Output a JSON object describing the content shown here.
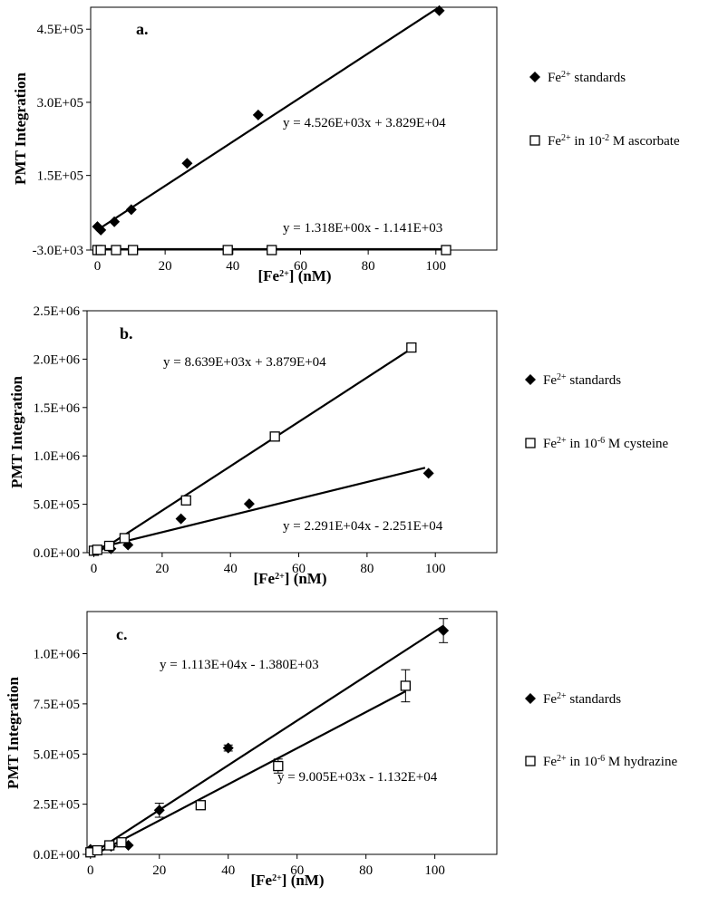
{
  "figure": {
    "x_axis_label": {
      "pre": "[Fe",
      "sup": "2+",
      "post": "] (nM)"
    },
    "y_axis_label": "PMT Integration"
  },
  "chart_data": [
    {
      "type": "scatter",
      "panel_label": "a.",
      "xlim": [
        -2,
        118
      ],
      "ylim": [
        -3000,
        495000
      ],
      "xticks": [
        0,
        20,
        40,
        60,
        80,
        100
      ],
      "yticks": [
        -3000,
        150000,
        300000,
        450000
      ],
      "ytick_labels": [
        "-3.0E+03",
        "1.5E+05",
        "3.0E+05",
        "4.5E+05"
      ],
      "series": [
        {
          "name": "standards",
          "legend": {
            "pre": "Fe",
            "sup": "2+",
            "post": " standards"
          },
          "marker": "diamond",
          "points": [
            [
              0,
              45000
            ],
            [
              1,
              38000
            ],
            [
              5,
              55000
            ],
            [
              10,
              80000
            ],
            [
              26.5,
              175000
            ],
            [
              47.5,
              274000
            ],
            [
              101,
              488000
            ]
          ],
          "fit": {
            "slope": 4526,
            "intercept": 38290,
            "x_range": [
              0,
              101
            ],
            "equation": "y = 4.526E+03x + 3.829E+04"
          }
        },
        {
          "name": "ascorbate",
          "legend": {
            "pre": "Fe",
            "sup": "2+",
            "mid": " in 10",
            "sup2": "-2",
            "post": " M ascorbate"
          },
          "marker": "square",
          "points": [
            [
              0,
              -3000
            ],
            [
              1,
              -3000
            ],
            [
              5.5,
              -3000
            ],
            [
              10.5,
              -3000
            ],
            [
              38.5,
              -3000
            ],
            [
              51.5,
              -3000
            ],
            [
              103,
              -3000
            ]
          ],
          "fit": {
            "slope": 1.318,
            "intercept": -1141,
            "x_range": [
              0,
              103
            ],
            "equation": "y = 1.318E+00x - 1.141E+03"
          }
        }
      ]
    },
    {
      "type": "scatter",
      "panel_label": "b.",
      "xlim": [
        -2,
        118
      ],
      "ylim": [
        0,
        2500000
      ],
      "xticks": [
        0,
        20,
        40,
        60,
        80,
        100
      ],
      "yticks": [
        0,
        500000,
        1000000,
        1500000,
        2000000,
        2500000
      ],
      "ytick_labels": [
        "0.0E+00",
        "5.0E+05",
        "1.0E+06",
        "1.5E+06",
        "2.0E+06",
        "2.5E+06"
      ],
      "series": [
        {
          "name": "standards",
          "legend": {
            "pre": "Fe",
            "sup": "2+",
            "post": " standards"
          },
          "marker": "diamond",
          "points": [
            [
              0,
              20000
            ],
            [
              1,
              25000
            ],
            [
              5,
              40000
            ],
            [
              10,
              80000
            ],
            [
              25.5,
              350000
            ],
            [
              45.5,
              505000
            ],
            [
              98,
              820000
            ]
          ],
          "fit": {
            "slope": 8639,
            "intercept": 38790,
            "x_range": [
              0,
              97
            ],
            "equation": "y = 8.639E+03x + 3.879E+04"
          }
        },
        {
          "name": "cysteine",
          "legend": {
            "pre": "Fe",
            "sup": "2+",
            "mid": " in 10",
            "sup2": "-6",
            "post": " M cysteine"
          },
          "marker": "square",
          "points": [
            [
              0,
              20000
            ],
            [
              1,
              30000
            ],
            [
              4.5,
              70000
            ],
            [
              9,
              150000
            ],
            [
              27,
              540000
            ],
            [
              53,
              1200000
            ],
            [
              93,
              2120000
            ]
          ],
          "fit": {
            "slope": 22910,
            "intercept": -22510,
            "x_range": [
              1,
              93
            ],
            "equation": "y = 2.291E+04x - 2.251E+04"
          }
        }
      ]
    },
    {
      "type": "scatter",
      "panel_label": "c.",
      "xlim": [
        -1,
        118
      ],
      "ylim": [
        0,
        1210000
      ],
      "xticks": [
        0,
        20,
        40,
        60,
        80,
        100
      ],
      "yticks": [
        0,
        250000,
        500000,
        750000,
        1000000
      ],
      "ytick_labels": [
        "0.0E+00",
        "2.5E+05",
        "5.0E+05",
        "7.5E+05",
        "1.0E+06"
      ],
      "series": [
        {
          "name": "standards",
          "legend": {
            "pre": "Fe",
            "sup": "2+",
            "post": " standards"
          },
          "marker": "diamond",
          "points": [
            [
              0,
              25000
            ],
            [
              1,
              15000
            ],
            [
              6,
              40000
            ],
            [
              11,
              45000
            ],
            [
              20,
              220000
            ],
            [
              40,
              530000
            ],
            [
              102.5,
              1115000
            ]
          ],
          "errors": [
            0,
            0,
            0,
            0,
            35000,
            15000,
            60000
          ],
          "fit": {
            "slope": 11130,
            "intercept": -1380,
            "x_range": [
              0,
              102.5
            ],
            "equation": "y = 1.113E+04x - 1.380E+03"
          }
        },
        {
          "name": "hydrazine",
          "legend": {
            "pre": "Fe",
            "sup": "2+",
            "mid": " in 10",
            "sup2": "-6",
            "post": " M hydrazine"
          },
          "marker": "square",
          "points": [
            [
              0,
              10000
            ],
            [
              2,
              20000
            ],
            [
              5.5,
              45000
            ],
            [
              9,
              60000
            ],
            [
              32,
              245000
            ],
            [
              54.5,
              440000
            ],
            [
              91.5,
              840000
            ]
          ],
          "errors": [
            0,
            0,
            0,
            0,
            15000,
            35000,
            80000
          ],
          "fit": {
            "slope": 9005,
            "intercept": -11320,
            "x_range": [
              2,
              91.5
            ],
            "equation": "y = 9.005E+03x - 1.132E+04"
          }
        }
      ]
    }
  ]
}
